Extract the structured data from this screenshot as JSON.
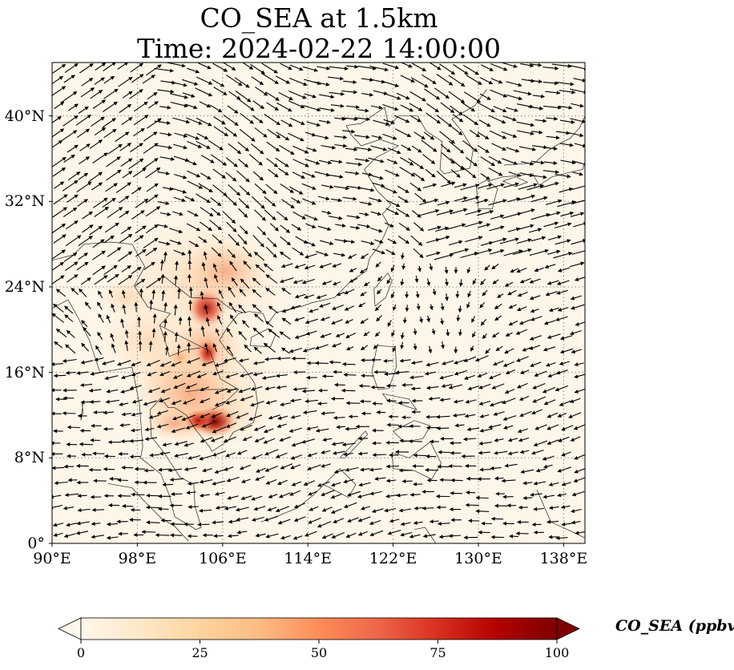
{
  "title": {
    "line1": "CO_SEA at 1.5km",
    "line2": "Time: 2024-02-22 14:00:00"
  },
  "map": {
    "projection": "PlateCarree",
    "lon_range": [
      90,
      140
    ],
    "lat_range": [
      0,
      45
    ],
    "lon_ticks": [
      {
        "value": 90,
        "label": "90°E"
      },
      {
        "value": 98,
        "label": "98°E"
      },
      {
        "value": 106,
        "label": "106°E"
      },
      {
        "value": 114,
        "label": "114°E"
      },
      {
        "value": 122,
        "label": "122°E"
      },
      {
        "value": 130,
        "label": "130°E"
      },
      {
        "value": 138,
        "label": "138°E"
      }
    ],
    "lat_ticks": [
      {
        "value": 0,
        "label": "0°"
      },
      {
        "value": 8,
        "label": "8°N"
      },
      {
        "value": 16,
        "label": "16°N"
      },
      {
        "value": 24,
        "label": "24°N"
      },
      {
        "value": 32,
        "label": "32°N"
      },
      {
        "value": 40,
        "label": "40°N"
      }
    ],
    "gridlines": "dotted",
    "wind_vectors": "black quiver arrows",
    "concentration_hotspots": [
      {
        "region": "northern Vietnam / Laos",
        "lon": 104.5,
        "lat": 22,
        "level_ppbv": 85
      },
      {
        "region": "Cambodia",
        "lon": 105,
        "lat": 11.3,
        "level_ppbv": 100
      },
      {
        "region": "central Indochina",
        "lon": 104,
        "lat": 17,
        "level_ppbv": 40
      },
      {
        "region": "southern China",
        "lon": 106,
        "lat": 25,
        "level_ppbv": 25
      }
    ]
  },
  "colorbar": {
    "colormap": "OrRd",
    "colors": [
      "#fff7ec",
      "#fee8c8",
      "#fdd49e",
      "#fdbb84",
      "#fc8d59",
      "#ef6548",
      "#d7301f",
      "#b30000",
      "#7f0000"
    ],
    "min": 0,
    "max": 100,
    "extend": "both",
    "ticks": [
      "0",
      "25",
      "50",
      "75",
      "100"
    ],
    "label": "CO_SEA (ppbv)"
  }
}
